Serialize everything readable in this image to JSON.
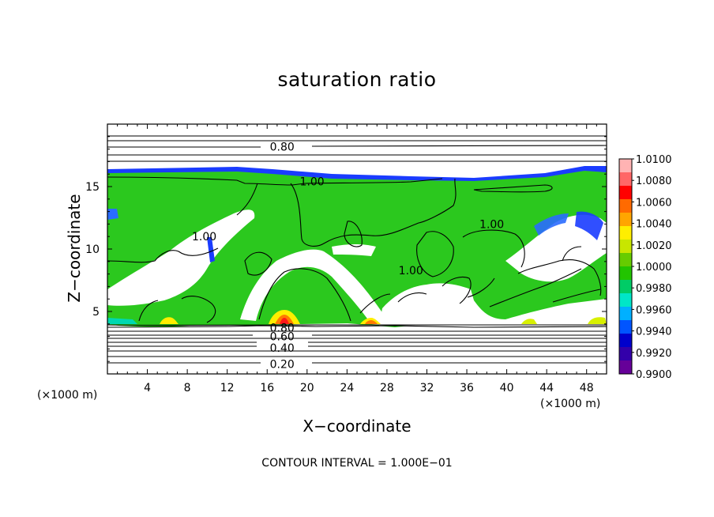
{
  "chart_data": {
    "type": "heatmap",
    "title": "saturation ratio",
    "xlabel": "X−coordinate",
    "ylabel": "Z−coordinate",
    "x_unit_label_left": "(×1000 m)",
    "x_unit_label_right": "(×1000 m)",
    "xlim": [
      0,
      50
    ],
    "ylim": [
      0,
      20
    ],
    "x_ticks": [
      4,
      8,
      12,
      16,
      20,
      24,
      28,
      32,
      36,
      40,
      44,
      48
    ],
    "y_ticks": [
      5,
      10,
      15
    ],
    "colorbar": {
      "min": 0.99,
      "max": 1.01,
      "labels": [
        "1.0100",
        "1.0080",
        "1.0060",
        "1.0040",
        "1.0020",
        "1.0000",
        "0.9980",
        "0.9960",
        "0.9940",
        "0.9920",
        "0.9900"
      ],
      "colors": [
        "#ffb3b3",
        "#ff6666",
        "#ff0000",
        "#ff6a00",
        "#ffa500",
        "#ffee00",
        "#c8e600",
        "#66cc00",
        "#22c400",
        "#00cc66",
        "#00e6c8",
        "#00b0ff",
        "#0055ff",
        "#0000cc",
        "#3300aa",
        "#660099"
      ]
    },
    "contour_labels": [
      {
        "text": "0.80",
        "x": 17.5,
        "z": 18.2
      },
      {
        "text": "1.00",
        "x": 20.5,
        "z": 15.4
      },
      {
        "text": "1.00",
        "x": 38.5,
        "z": 12.0
      },
      {
        "text": "1.00",
        "x": 9.7,
        "z": 11.0
      },
      {
        "text": "1.00",
        "x": 30.4,
        "z": 8.3
      },
      {
        "text": "0.80",
        "x": 17.5,
        "z": 3.7
      },
      {
        "text": "0.60",
        "x": 17.5,
        "z": 3.0
      },
      {
        "text": "0.40",
        "x": 17.5,
        "z": 2.1
      },
      {
        "text": "0.20",
        "x": 17.5,
        "z": 0.8
      }
    ],
    "contour_interval_text": "CONTOUR INTERVAL = 1.000E−01"
  }
}
